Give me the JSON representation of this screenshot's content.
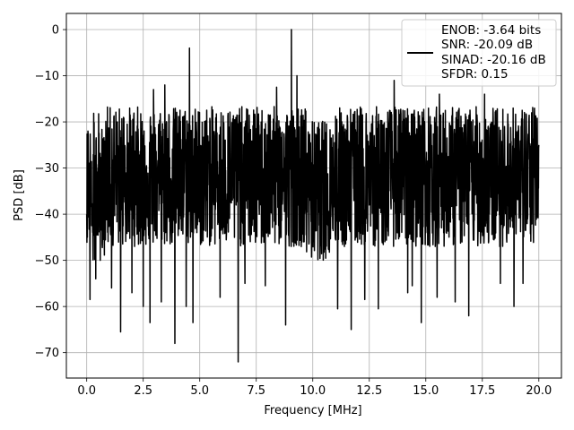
{
  "chart_data": {
    "type": "line",
    "title": "",
    "xlabel": "Frequency [MHz]",
    "ylabel": "PSD [dB]",
    "xlim": [
      -0.9,
      21.0
    ],
    "ylim": [
      -75.5,
      3.5
    ],
    "xticks": [
      0.0,
      2.5,
      5.0,
      7.5,
      10.0,
      12.5,
      15.0,
      17.5,
      20.0
    ],
    "xtick_labels": [
      "0.0",
      "2.5",
      "5.0",
      "7.5",
      "10.0",
      "12.5",
      "15.0",
      "17.5",
      "20.0"
    ],
    "yticks": [
      0,
      -10,
      -20,
      -30,
      -40,
      -50,
      -60,
      -70
    ],
    "ytick_labels": [
      "0",
      "−10",
      "−20",
      "−30",
      "−40",
      "−50",
      "−60",
      "−70"
    ],
    "grid": true,
    "line_color": "#000000",
    "legend_position": "top-right",
    "legend_lines": [
      "ENOB: -3.64 bits",
      "SNR: -20.09 dB",
      "SINAD: -20.16 dB",
      "SFDR: 0.15"
    ],
    "x_range": [
      0.0,
      20.0
    ],
    "noise_band_approx_db": [
      -45,
      -18
    ],
    "spikes": [
      {
        "x": 0.05,
        "y": -22
      },
      {
        "x": 0.15,
        "y": -58.5
      },
      {
        "x": 0.4,
        "y": -54
      },
      {
        "x": 0.6,
        "y": -50
      },
      {
        "x": 1.1,
        "y": -56
      },
      {
        "x": 1.5,
        "y": -65.5
      },
      {
        "x": 2.0,
        "y": -57
      },
      {
        "x": 2.5,
        "y": -60
      },
      {
        "x": 2.8,
        "y": -63.5
      },
      {
        "x": 2.95,
        "y": -13
      },
      {
        "x": 3.3,
        "y": -59
      },
      {
        "x": 3.45,
        "y": -12
      },
      {
        "x": 3.9,
        "y": -68
      },
      {
        "x": 4.4,
        "y": -60
      },
      {
        "x": 4.55,
        "y": -4
      },
      {
        "x": 4.7,
        "y": -63.5
      },
      {
        "x": 5.9,
        "y": -58
      },
      {
        "x": 6.7,
        "y": -72
      },
      {
        "x": 7.0,
        "y": -55
      },
      {
        "x": 7.9,
        "y": -55.5
      },
      {
        "x": 8.4,
        "y": -12.5
      },
      {
        "x": 8.8,
        "y": -64
      },
      {
        "x": 9.05,
        "y": 0
      },
      {
        "x": 9.3,
        "y": -10
      },
      {
        "x": 9.6,
        "y": -46
      },
      {
        "x": 11.1,
        "y": -60.5
      },
      {
        "x": 11.4,
        "y": -47
      },
      {
        "x": 11.7,
        "y": -65
      },
      {
        "x": 12.3,
        "y": -58.5
      },
      {
        "x": 12.9,
        "y": -60.5
      },
      {
        "x": 13.6,
        "y": -11
      },
      {
        "x": 14.2,
        "y": -57
      },
      {
        "x": 14.4,
        "y": -55.5
      },
      {
        "x": 14.8,
        "y": -63.5
      },
      {
        "x": 15.5,
        "y": -58
      },
      {
        "x": 15.6,
        "y": -14
      },
      {
        "x": 16.3,
        "y": -59
      },
      {
        "x": 16.9,
        "y": -62
      },
      {
        "x": 17.6,
        "y": -14
      },
      {
        "x": 18.3,
        "y": -55
      },
      {
        "x": 18.9,
        "y": -60
      },
      {
        "x": 19.3,
        "y": -55
      },
      {
        "x": 20.0,
        "y": -25
      }
    ]
  }
}
